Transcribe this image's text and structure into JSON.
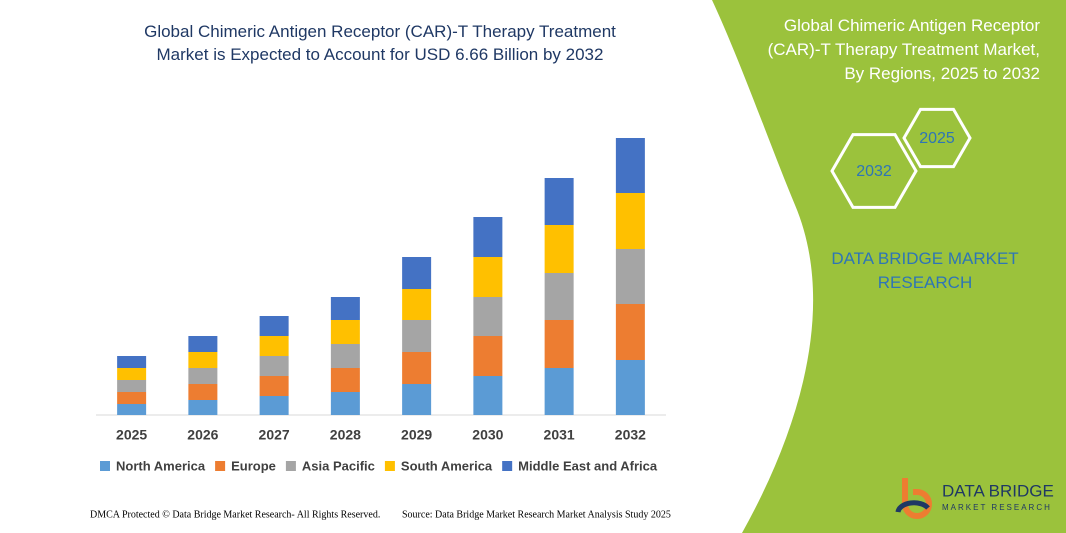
{
  "chart_data": {
    "type": "bar",
    "stacked": true,
    "title": "Global Chimeric Antigen Receptor (CAR)-T Therapy Treatment Market is Expected to Account for USD 6.66 Billion by 2032",
    "categories": [
      "2025",
      "2026",
      "2027",
      "2028",
      "2029",
      "2030",
      "2031",
      "2032"
    ],
    "series": [
      {
        "name": "North America",
        "color": "#5b9bd5",
        "values": [
          1.1,
          1.5,
          1.9,
          2.3,
          3.1,
          3.9,
          4.7,
          5.5
        ]
      },
      {
        "name": "Europe",
        "color": "#ed7d31",
        "values": [
          1.2,
          1.6,
          2.0,
          2.4,
          3.2,
          4.0,
          4.8,
          5.6
        ]
      },
      {
        "name": "Asia Pacific",
        "color": "#a5a5a5",
        "values": [
          1.2,
          1.6,
          2.0,
          2.4,
          3.2,
          3.9,
          4.7,
          5.5
        ]
      },
      {
        "name": "South America",
        "color": "#ffc000",
        "values": [
          1.2,
          1.6,
          2.0,
          2.4,
          3.1,
          4.0,
          4.8,
          5.6
        ]
      },
      {
        "name": "Middle East and Africa",
        "color": "#4472c4",
        "values": [
          1.2,
          1.6,
          2.0,
          2.3,
          3.2,
          4.0,
          4.7,
          5.5
        ]
      }
    ],
    "ylim": [
      0,
      28
    ],
    "grid": false,
    "legend": "bottom"
  },
  "panel": {
    "title": "Global Chimeric Antigen Receptor (CAR)-T Therapy Treatment Market, By Regions, 2025 to 2032",
    "hexagons": [
      "2025",
      "2032"
    ],
    "brand": "DATA BRIDGE MARKET RESEARCH"
  },
  "footer": {
    "dmca": "DMCA Protected © Data Bridge Market Research- All Rights Reserved.",
    "source": "Source: Data Bridge Market Research Market Analysis Study 2025"
  },
  "logo": {
    "name": "DATA BRIDGE",
    "tagline": "MARKET RESEARCH"
  }
}
